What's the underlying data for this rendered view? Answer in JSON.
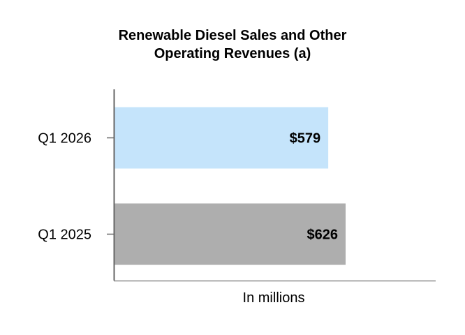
{
  "chart_data": {
    "type": "bar",
    "orientation": "horizontal",
    "title_lines": [
      "Renewable Diesel Sales and Other",
      "Operating Revenues (a)"
    ],
    "categories": [
      "Q1 2026",
      "Q1 2025"
    ],
    "values": [
      579,
      626
    ],
    "data_labels": [
      "$579",
      "$626"
    ],
    "bar_colors": [
      "#c5e4fb",
      "#aeaeae"
    ],
    "xlabel": "In millions",
    "ylabel": "",
    "xlim": [
      0,
      870
    ],
    "grid": false,
    "legend": "none"
  }
}
